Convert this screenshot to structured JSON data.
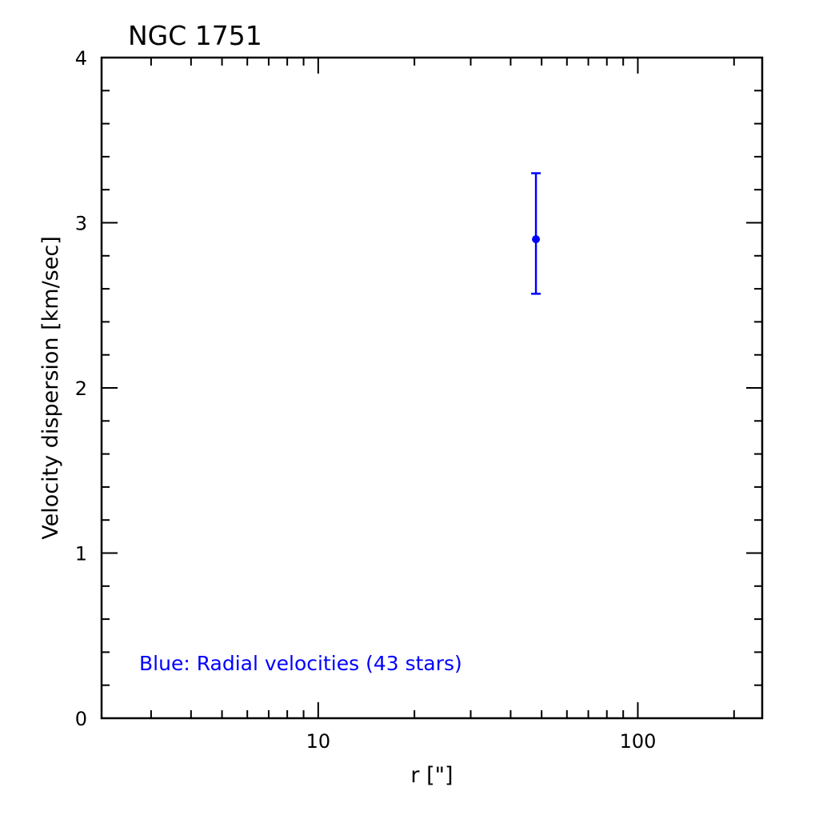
{
  "chart_data": {
    "type": "scatter",
    "title": "NGC 1751",
    "xlabel": "r [\"]",
    "ylabel": "Velocity dispersion [km/sec]",
    "xscale": "log",
    "xlim": [
      2.1,
      245
    ],
    "ylim": [
      0,
      4
    ],
    "x_tick_labels": [
      "10",
      "100"
    ],
    "x_ticks": [
      10,
      100
    ],
    "y_tick_labels": [
      "0",
      "1",
      "2",
      "3",
      "4"
    ],
    "y_ticks": [
      0,
      1,
      2,
      3,
      4
    ],
    "grid": false,
    "series": [
      {
        "color": "#0000ff",
        "points": [
          {
            "x": 48,
            "y": 2.9,
            "y_err_low": 0.33,
            "y_err_high": 0.4
          }
        ]
      }
    ],
    "annotation": "Blue: Radial velocities (43 stars)",
    "annotation_color": "#0000ff"
  }
}
